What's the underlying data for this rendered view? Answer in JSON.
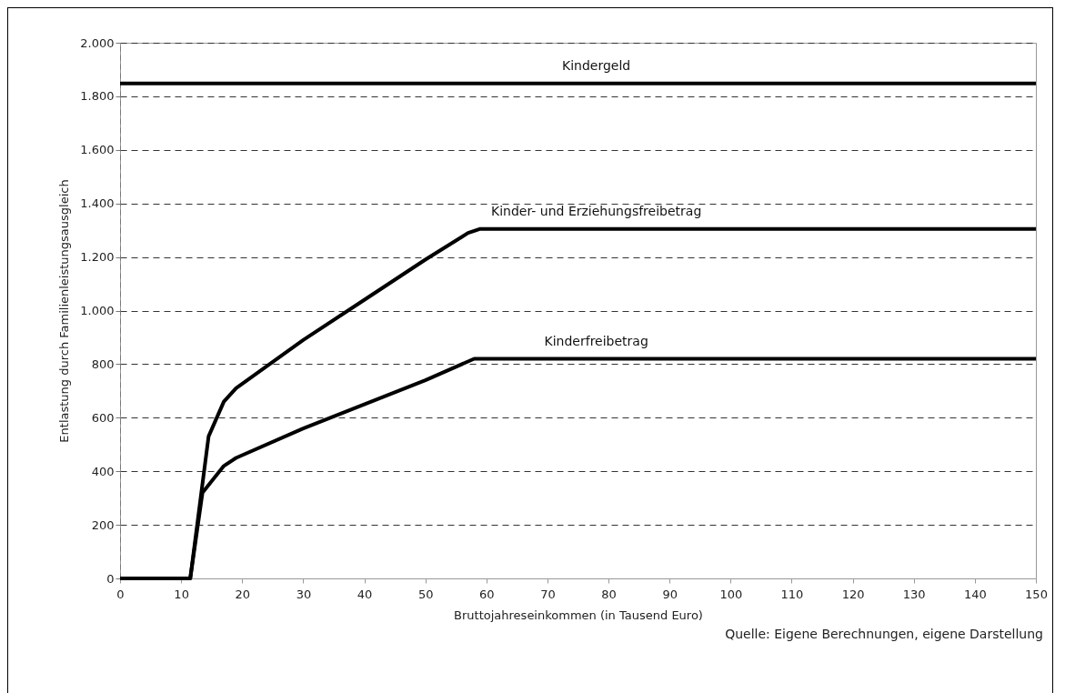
{
  "chart_data": {
    "type": "line",
    "xlabel": "Bruttojahreseinkommen (in Tausend Euro)",
    "ylabel": "Entlastung durch Familienleistungsausgleich",
    "xlim": [
      0,
      150
    ],
    "xticks": [
      0,
      10,
      20,
      30,
      40,
      50,
      60,
      70,
      80,
      90,
      100,
      110,
      120,
      130,
      140,
      150
    ],
    "ylim": [
      0,
      2000
    ],
    "yticks": [
      0,
      200,
      400,
      600,
      800,
      {
        "value": 1000,
        "label": "1.000"
      },
      {
        "value": 1200,
        "label": "1.200"
      },
      {
        "value": 1400,
        "label": "1.400"
      },
      {
        "value": 1600,
        "label": "1.600"
      },
      {
        "value": 1800,
        "label": "1.800"
      },
      {
        "value": 2000,
        "label": "2.000"
      }
    ],
    "grid": "y",
    "legend": false,
    "line_style": "solid",
    "marker": "none",
    "series": [
      {
        "name": "Kindergeld",
        "color": "#000000",
        "x": [
          0,
          150
        ],
        "values": [
          1848,
          1848
        ]
      },
      {
        "name": "Kinder- und Erziehungsfreibetrag",
        "color": "#000000",
        "x": [
          0,
          11.5,
          14.5,
          17,
          19,
          30,
          40,
          50,
          57,
          59,
          150
        ],
        "values": [
          0,
          0,
          530,
          660,
          710,
          890,
          1040,
          1190,
          1290,
          1305,
          1305
        ]
      },
      {
        "name": "Kinderfreibetrag",
        "color": "#000000",
        "x": [
          0,
          11.5,
          13.5,
          17,
          19,
          30,
          40,
          50,
          58,
          150
        ],
        "values": [
          0,
          0,
          320,
          420,
          450,
          560,
          650,
          740,
          820,
          820
        ]
      }
    ],
    "annotations": [
      "Quelle: Eigene Berechnungen, eigene Darstellung"
    ]
  }
}
